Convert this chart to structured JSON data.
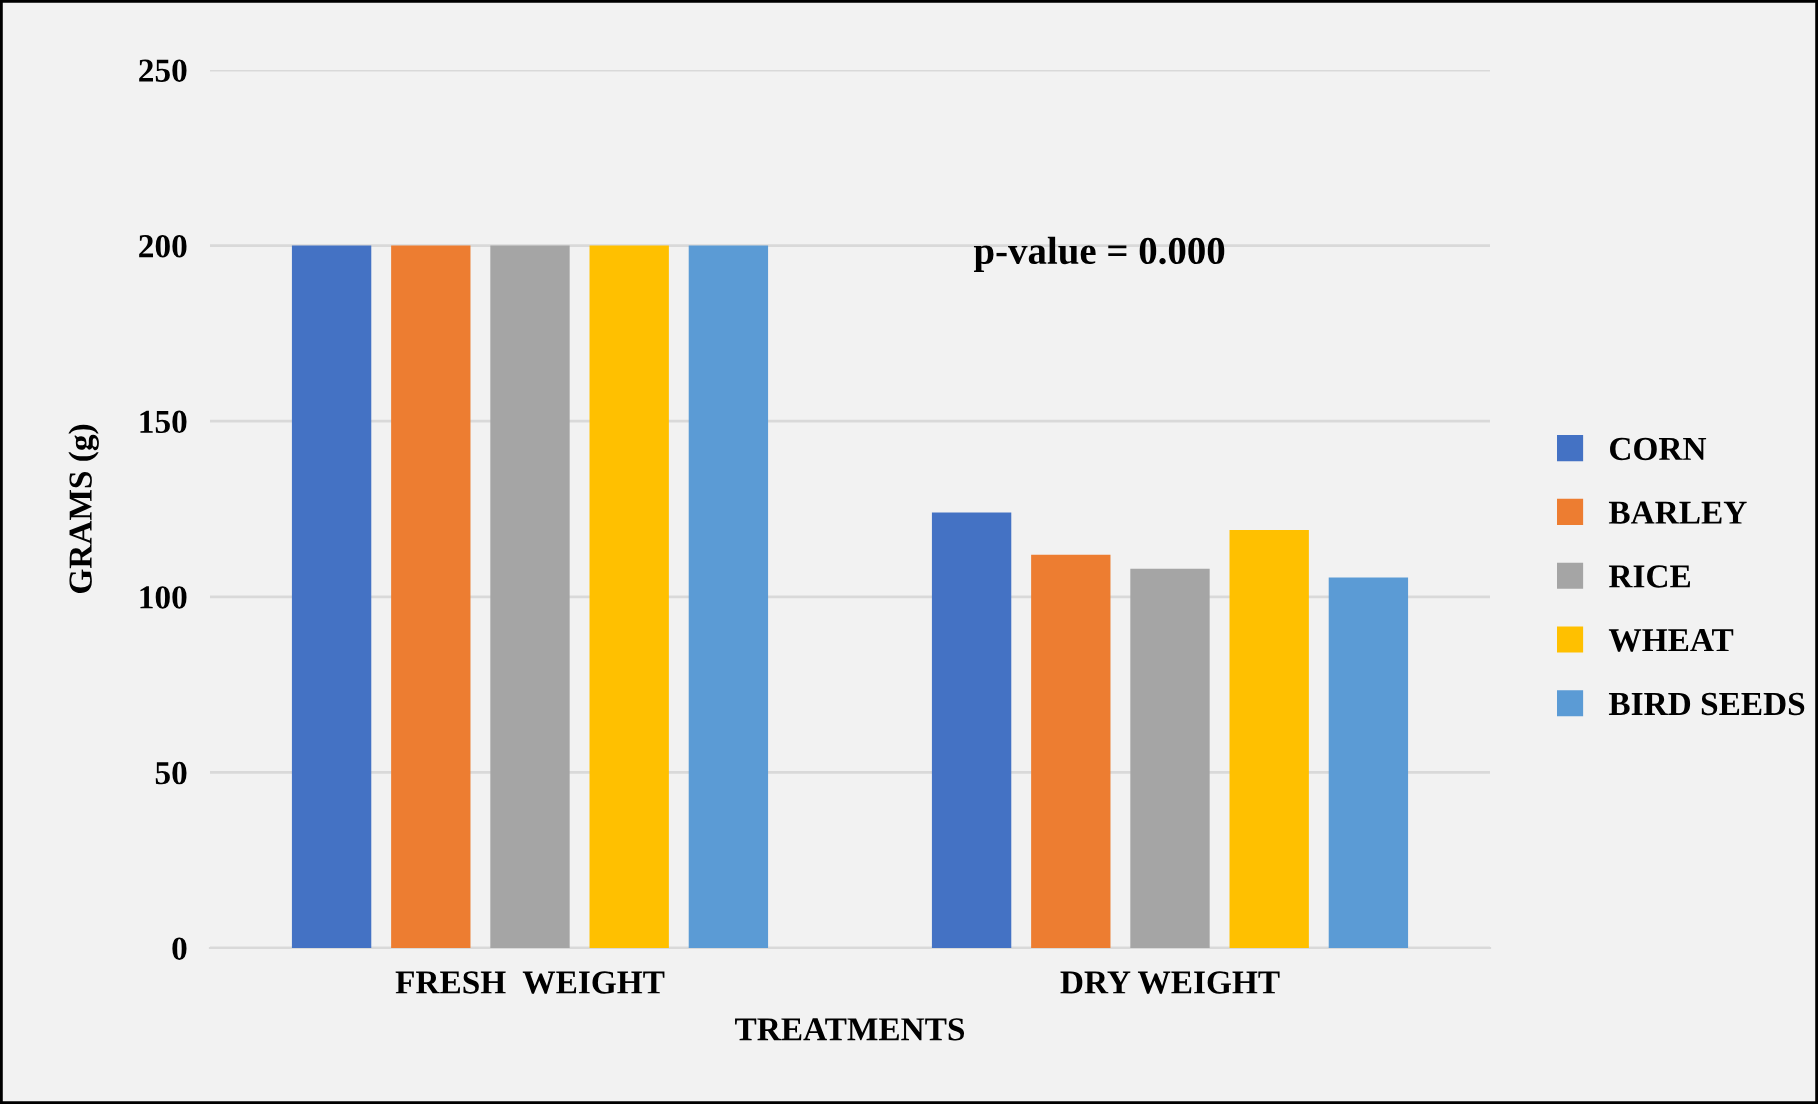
{
  "chart_data": {
    "type": "bar",
    "xlabel": "TREATMENTS",
    "ylabel": "GRAMS (g)",
    "categories": [
      "FRESH  WEIGHT",
      "DRY WEIGHT"
    ],
    "series": [
      {
        "name": "CORN",
        "color": "#4472c4",
        "values": [
          200,
          124
        ]
      },
      {
        "name": "BARLEY",
        "color": "#ed7d31",
        "values": [
          200,
          112
        ]
      },
      {
        "name": "RICE",
        "color": "#a5a5a5",
        "values": [
          200,
          108
        ]
      },
      {
        "name": "WHEAT",
        "color": "#ffc000",
        "values": [
          200,
          119
        ]
      },
      {
        "name": "BIRD SEEDS",
        "color": "#5b9bd5",
        "values": [
          200,
          105.5
        ]
      }
    ],
    "ylim": [
      0,
      250
    ],
    "yticks": [
      0,
      50,
      100,
      150,
      200,
      250
    ],
    "grid": "y",
    "legend": "right",
    "annotations": [
      "p-value = 0.000"
    ]
  }
}
